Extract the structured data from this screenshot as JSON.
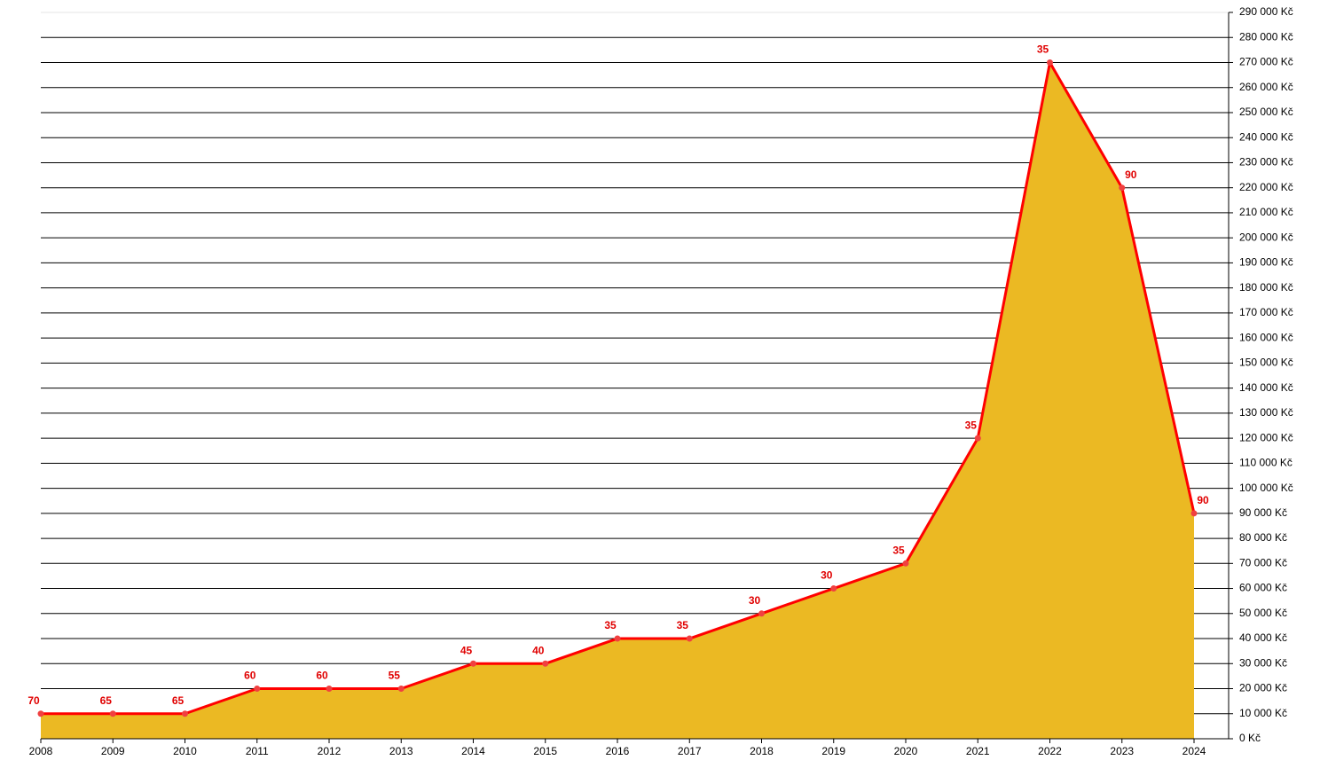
{
  "chart_data": {
    "type": "area",
    "x": [
      2008,
      2009,
      2010,
      2011,
      2012,
      2013,
      2014,
      2015,
      2016,
      2017,
      2018,
      2019,
      2020,
      2021,
      2022,
      2023,
      2024
    ],
    "xlim": [
      2008,
      2024
    ],
    "xticks": [
      2008,
      2009,
      2010,
      2011,
      2012,
      2013,
      2014,
      2015,
      2016,
      2017,
      2018,
      2019,
      2020,
      2021,
      2022,
      2023,
      2024
    ],
    "values": [
      10000,
      10000,
      10000,
      20000,
      20000,
      20000,
      30000,
      30000,
      40000,
      40000,
      50000,
      60000,
      70000,
      120000,
      270000,
      220000,
      90000
    ],
    "point_labels": [
      70,
      65,
      65,
      60,
      60,
      55,
      45,
      40,
      35,
      35,
      30,
      30,
      35,
      35,
      35,
      90,
      90
    ],
    "line_color": "#ff0000",
    "fill_color": "#ebb923",
    "label_color": "#e00000",
    "ylim": [
      0,
      290000
    ],
    "yticks": [
      {
        "value": 0,
        "label": "0 Kč"
      },
      {
        "value": 10000,
        "label": "10 000 Kč"
      },
      {
        "value": 20000,
        "label": "20 000 Kč"
      },
      {
        "value": 30000,
        "label": "30 000 Kč"
      },
      {
        "value": 40000,
        "label": "40 000 Kč"
      },
      {
        "value": 50000,
        "label": "50 000 Kč"
      },
      {
        "value": 60000,
        "label": "60 000 Kč"
      },
      {
        "value": 70000,
        "label": "70 000 Kč"
      },
      {
        "value": 80000,
        "label": "80 000 Kč"
      },
      {
        "value": 90000,
        "label": "90 000 Kč"
      },
      {
        "value": 100000,
        "label": "100 000 Kč"
      },
      {
        "value": 110000,
        "label": "110 000 Kč"
      },
      {
        "value": 120000,
        "label": "120 000 Kč"
      },
      {
        "value": 130000,
        "label": "130 000 Kč"
      },
      {
        "value": 140000,
        "label": "140 000 Kč"
      },
      {
        "value": 150000,
        "label": "150 000 Kč"
      },
      {
        "value": 160000,
        "label": "160 000 Kč"
      },
      {
        "value": 170000,
        "label": "170 000 Kč"
      },
      {
        "value": 180000,
        "label": "180 000 Kč"
      },
      {
        "value": 190000,
        "label": "190 000 Kč"
      },
      {
        "value": 200000,
        "label": "200 000 Kč"
      },
      {
        "value": 210000,
        "label": "210 000 Kč"
      },
      {
        "value": 220000,
        "label": "220 000 Kč"
      },
      {
        "value": 230000,
        "label": "230 000 Kč"
      },
      {
        "value": 240000,
        "label": "240 000 Kč"
      },
      {
        "value": 250000,
        "label": "250 000 Kč"
      },
      {
        "value": 260000,
        "label": "260 000 Kč"
      },
      {
        "value": 270000,
        "label": "270 000 Kč"
      },
      {
        "value": 280000,
        "label": "280 000 Kč"
      },
      {
        "value": 290000,
        "label": "290 000 Kč"
      }
    ],
    "grid": true
  }
}
